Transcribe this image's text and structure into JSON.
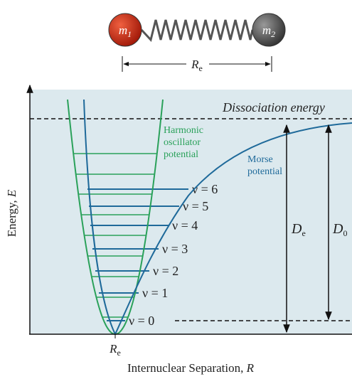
{
  "molecule": {
    "mass_1": {
      "symbol": "m",
      "subscript": "1"
    },
    "mass_2": {
      "symbol": "m",
      "subscript": "2"
    },
    "bond_length": {
      "symbol": "R",
      "subscript": "e"
    }
  },
  "plot": {
    "dissociation_label": "Dissociation energy",
    "harmonic_label": [
      "Harmonic",
      "oscillator",
      "potential"
    ],
    "morse_label": [
      "Morse",
      "potential"
    ],
    "levels": [
      "ν = 0",
      "ν = 1",
      "ν = 2",
      "ν = 3",
      "ν = 4",
      "ν = 5",
      "ν = 6"
    ],
    "dissociation_depth": {
      "symbol": "D",
      "subscript": "e"
    },
    "zero_point_depth": {
      "symbol": "D",
      "subscript": "0"
    },
    "y_axis": {
      "text": "Energy,",
      "variable": "E"
    },
    "x_tick": {
      "symbol": "R",
      "subscript": "e"
    },
    "x_axis": {
      "text": "Internuclear Separation,",
      "variable": "R"
    }
  }
}
